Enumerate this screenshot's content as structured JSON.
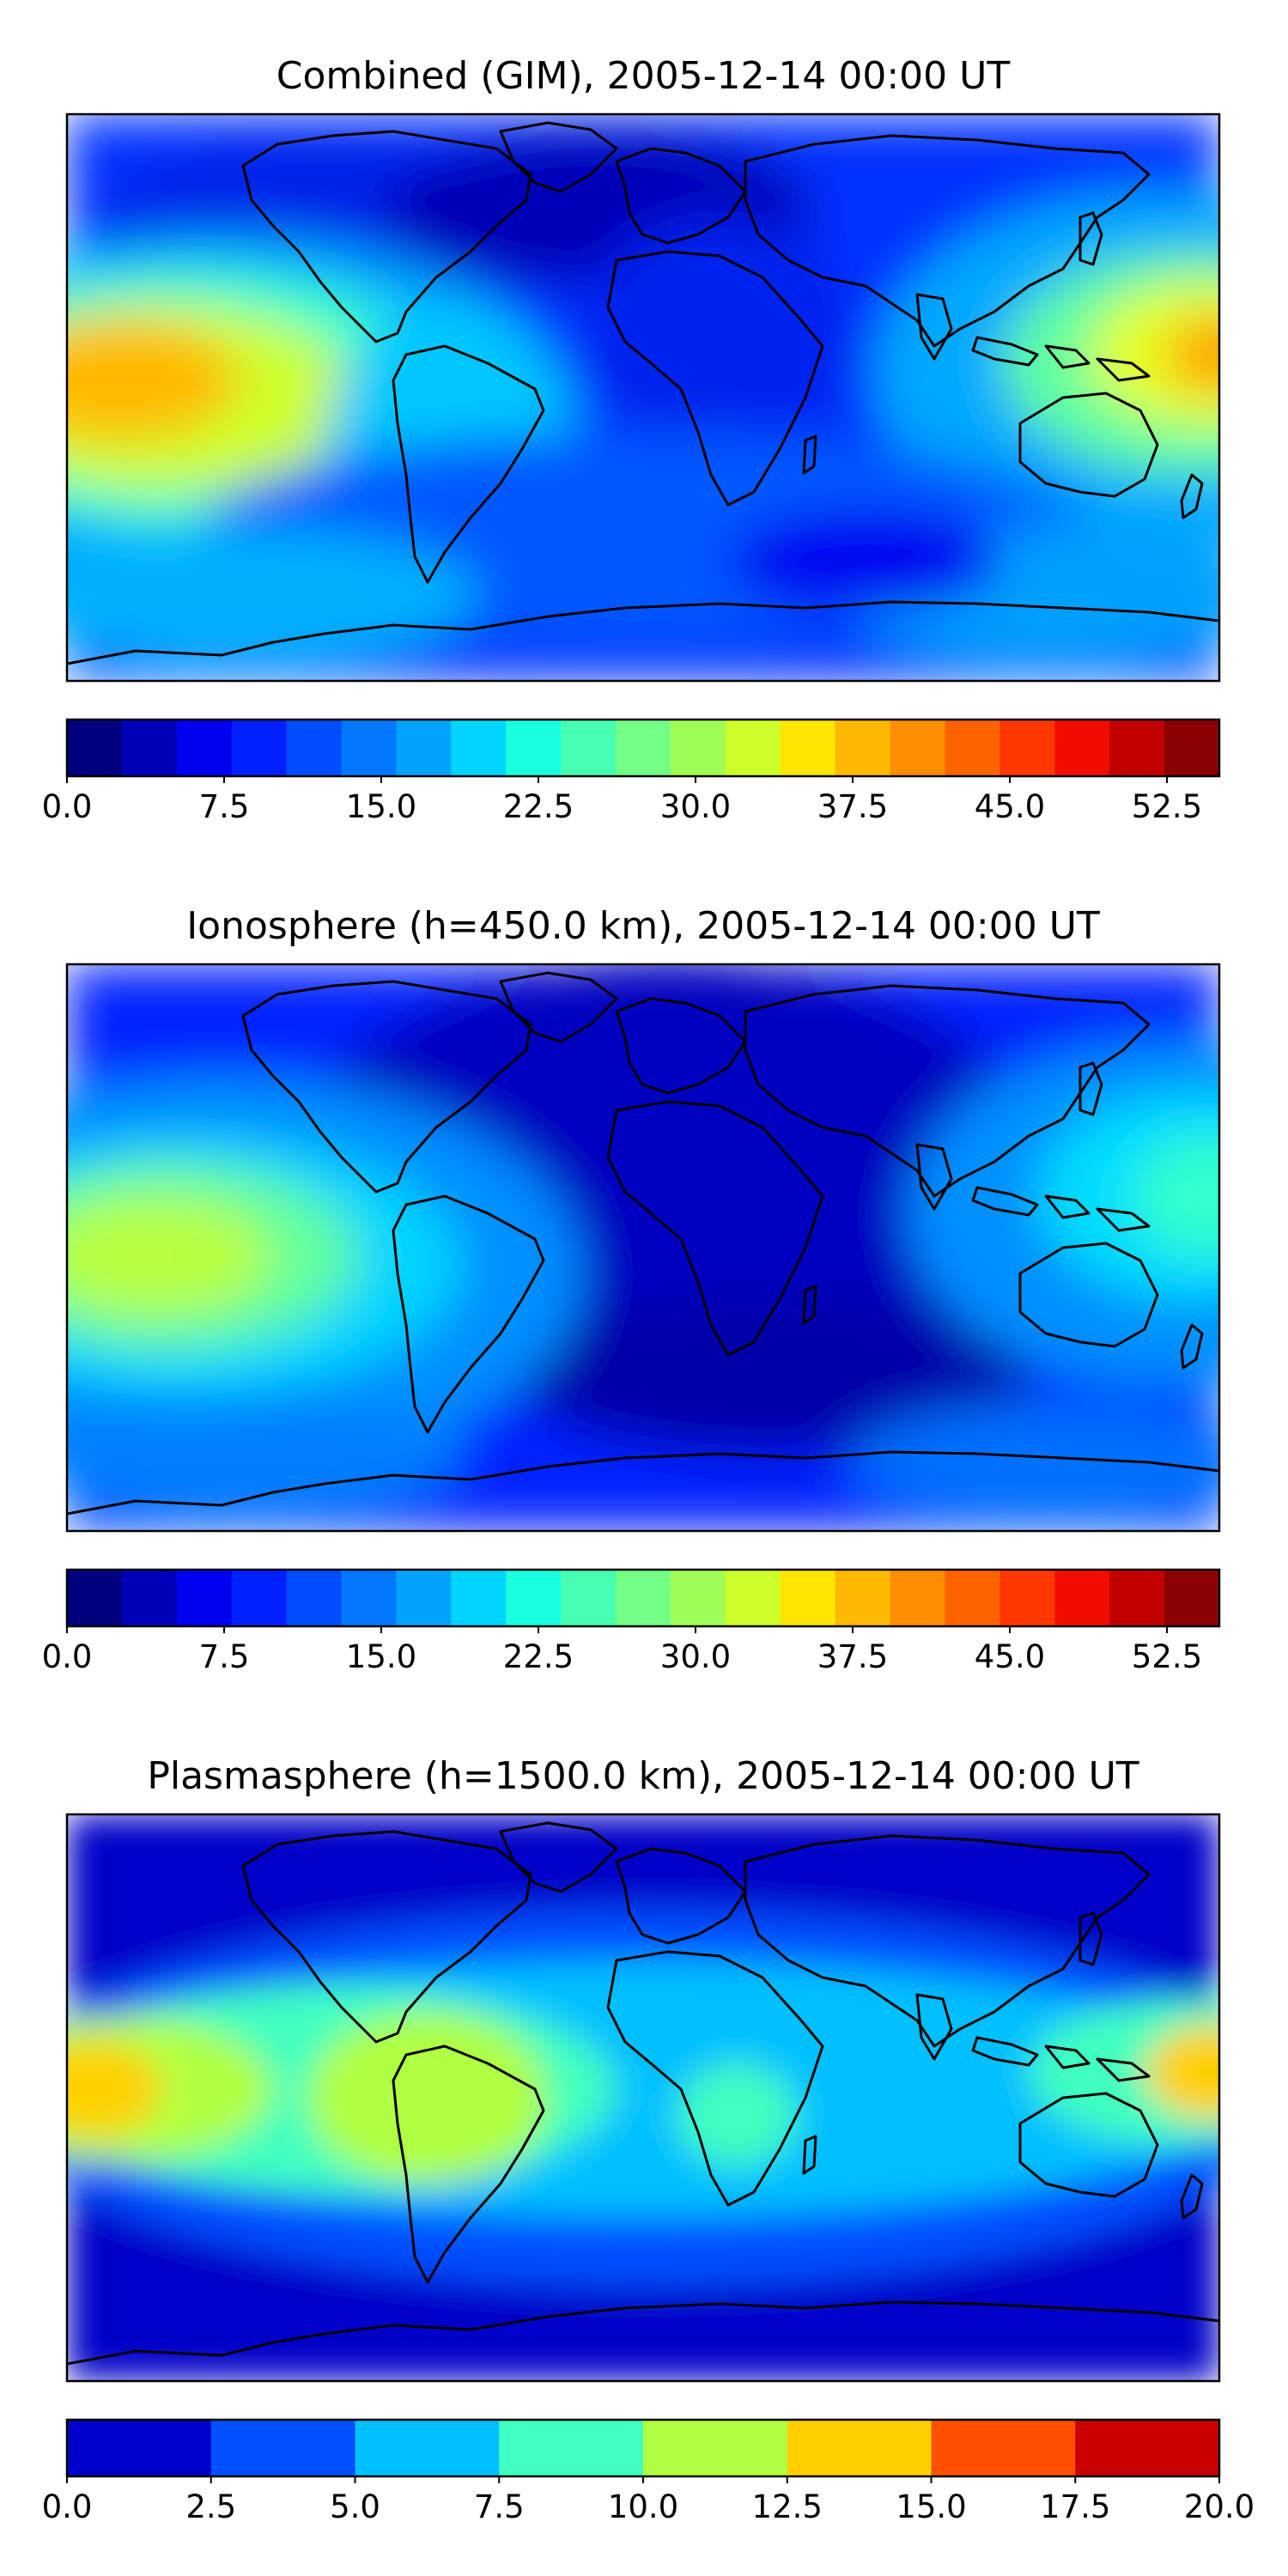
{
  "figure": {
    "panels": [
      {
        "title": "Combined (GIM), 2005-12-14 00:00 UT",
        "colorbar": {
          "min": 0,
          "max": 55,
          "step": 2.5,
          "tick_labels": [
            "0.0",
            "7.5",
            "15.0",
            "22.5",
            "30.0",
            "37.5",
            "45.0",
            "52.5"
          ],
          "colors": [
            "#00007f",
            "#0000b8",
            "#0000f1",
            "#0020ff",
            "#004cff",
            "#0078ff",
            "#00a4ff",
            "#00d4ff",
            "#1affdd",
            "#46ffb1",
            "#73ff84",
            "#a0ff57",
            "#cdff2a",
            "#ffe600",
            "#ffb900",
            "#ff8e00",
            "#ff6300",
            "#ff3800",
            "#f10c00",
            "#c20000",
            "#8b0000"
          ]
        }
      },
      {
        "title": "Ionosphere  (h=450.0 km), 2005-12-14 00:00 UT",
        "colorbar": {
          "min": 0,
          "max": 55,
          "step": 2.5,
          "tick_labels": [
            "0.0",
            "7.5",
            "15.0",
            "22.5",
            "30.0",
            "37.5",
            "45.0",
            "52.5"
          ],
          "colors": [
            "#00007f",
            "#0000b8",
            "#0000f1",
            "#0020ff",
            "#004cff",
            "#0078ff",
            "#00a4ff",
            "#00d4ff",
            "#1affdd",
            "#46ffb1",
            "#73ff84",
            "#a0ff57",
            "#cdff2a",
            "#ffe600",
            "#ffb900",
            "#ff8e00",
            "#ff6300",
            "#ff3800",
            "#f10c00",
            "#c20000",
            "#8b0000"
          ]
        }
      },
      {
        "title": "Plasmasphere (h=1500.0 km), 2005-12-14 00:00 UT",
        "colorbar": {
          "min": 0,
          "max": 20,
          "step": 2.5,
          "tick_labels": [
            "0.0",
            "2.5",
            "5.0",
            "7.5",
            "10.0",
            "12.5",
            "15.0",
            "17.5",
            "20.0"
          ],
          "colors": [
            "#0000c8",
            "#0050ff",
            "#00c0ff",
            "#40ffc0",
            "#b0ff40",
            "#ffd000",
            "#ff5000",
            "#c80000"
          ]
        }
      }
    ]
  },
  "chart_data": [
    {
      "type": "heatmap",
      "title": "Combined (GIM), 2005-12-14 00:00 UT",
      "colorbar_range": [
        0,
        55
      ],
      "colorbar_levels": 2.5,
      "approx_features": {
        "peak_region": "Pacific west of South America and near Australia/Indonesia",
        "peak_value_approx": 40,
        "low_region": "Europe/North Atlantic and Africa",
        "low_value_approx": 5
      }
    },
    {
      "type": "heatmap",
      "title": "Ionosphere  (h=450.0 km), 2005-12-14 00:00 UT",
      "colorbar_range": [
        0,
        55
      ],
      "colorbar_levels": 2.5,
      "approx_features": {
        "peak_region": "Pacific west of South America",
        "peak_value_approx": 30,
        "low_region": "Africa/Atlantic",
        "low_value_approx": 3
      }
    },
    {
      "type": "heatmap",
      "title": "Plasmasphere (h=1500.0 km), 2005-12-14 00:00 UT",
      "colorbar_range": [
        0,
        20
      ],
      "colorbar_levels": 2.5,
      "approx_features": {
        "peak_region": "Pacific near date line at equator",
        "peak_value_approx": 13,
        "low_region": "polar regions",
        "low_value_approx": 1
      }
    }
  ]
}
